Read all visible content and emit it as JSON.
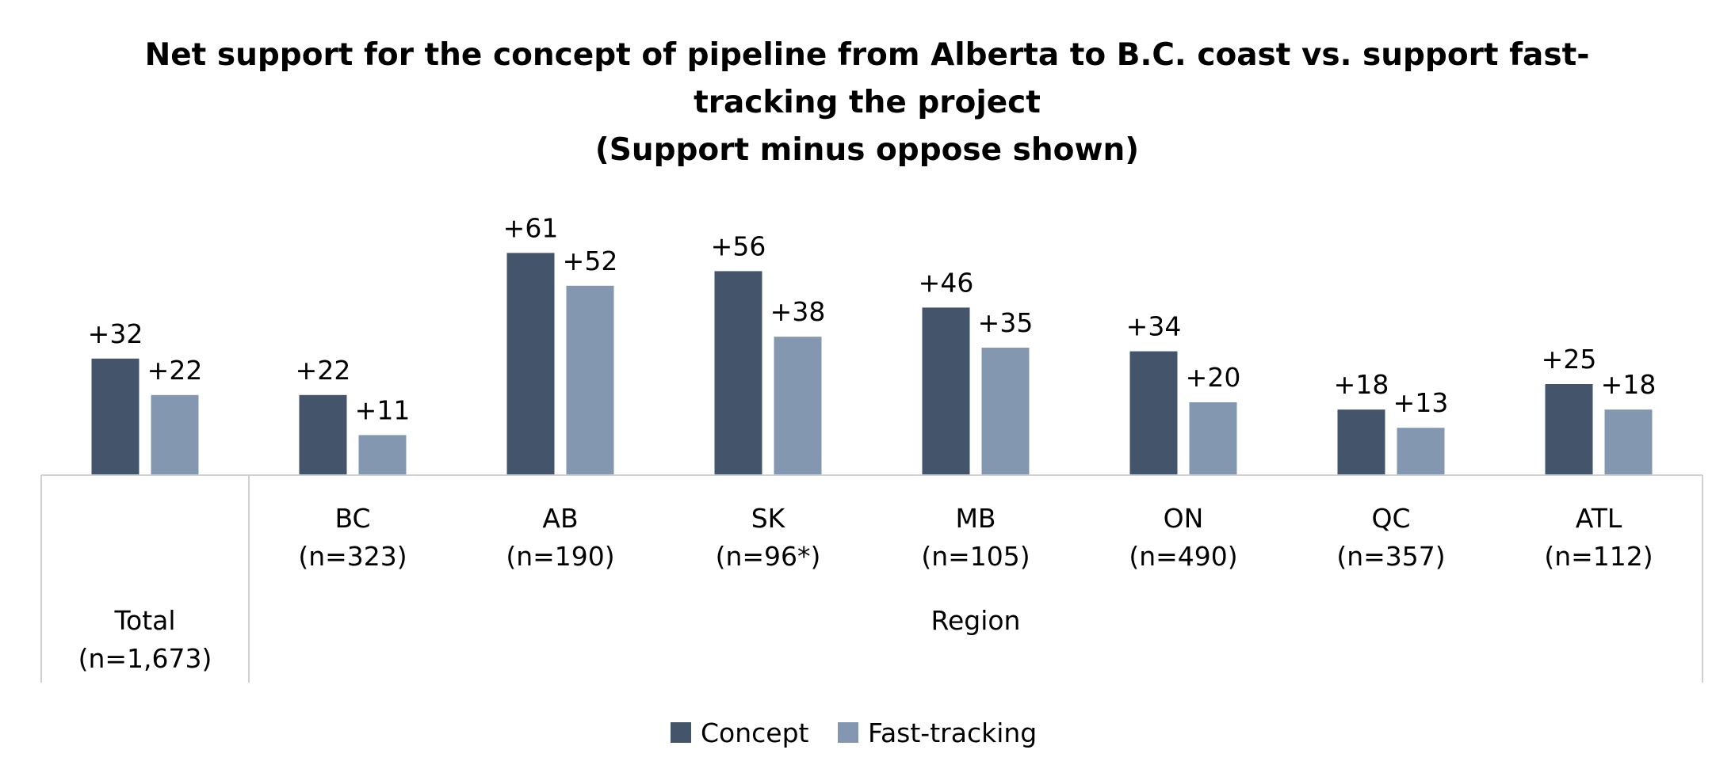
{
  "chart_data": {
    "type": "bar",
    "title_lines": [
      "Net support for the concept of pipeline from Alberta to B.C. coast vs. support fast-",
      "tracking the project",
      "(Support minus oppose shown)"
    ],
    "xlabel": "",
    "ylabel": "",
    "ylim": [
      0,
      70
    ],
    "grid": false,
    "legend_position": "bottom",
    "categories": [
      {
        "name": "Total",
        "n": "(n=1,673)"
      },
      {
        "name": "BC",
        "n": "(n=323)"
      },
      {
        "name": "AB",
        "n": "(n=190)"
      },
      {
        "name": "SK",
        "n": "(n=96*)"
      },
      {
        "name": "MB",
        "n": "(n=105)"
      },
      {
        "name": "ON",
        "n": "(n=490)"
      },
      {
        "name": "QC",
        "n": "(n=357)"
      },
      {
        "name": "ATL",
        "n": "(n=112)"
      }
    ],
    "group_label": "Region",
    "series": [
      {
        "name": "Concept",
        "color": "#44546a",
        "values": [
          32,
          22,
          61,
          56,
          46,
          34,
          18,
          25
        ],
        "labels": [
          "+32",
          "+22",
          "+61",
          "+56",
          "+46",
          "+34",
          "+18",
          "+25"
        ]
      },
      {
        "name": "Fast-tracking",
        "color": "#8497b0",
        "values": [
          22,
          11,
          52,
          38,
          35,
          20,
          13,
          18
        ],
        "labels": [
          "+22",
          "+11",
          "+52",
          "+38",
          "+35",
          "+20",
          "+13",
          "+18"
        ]
      }
    ]
  }
}
